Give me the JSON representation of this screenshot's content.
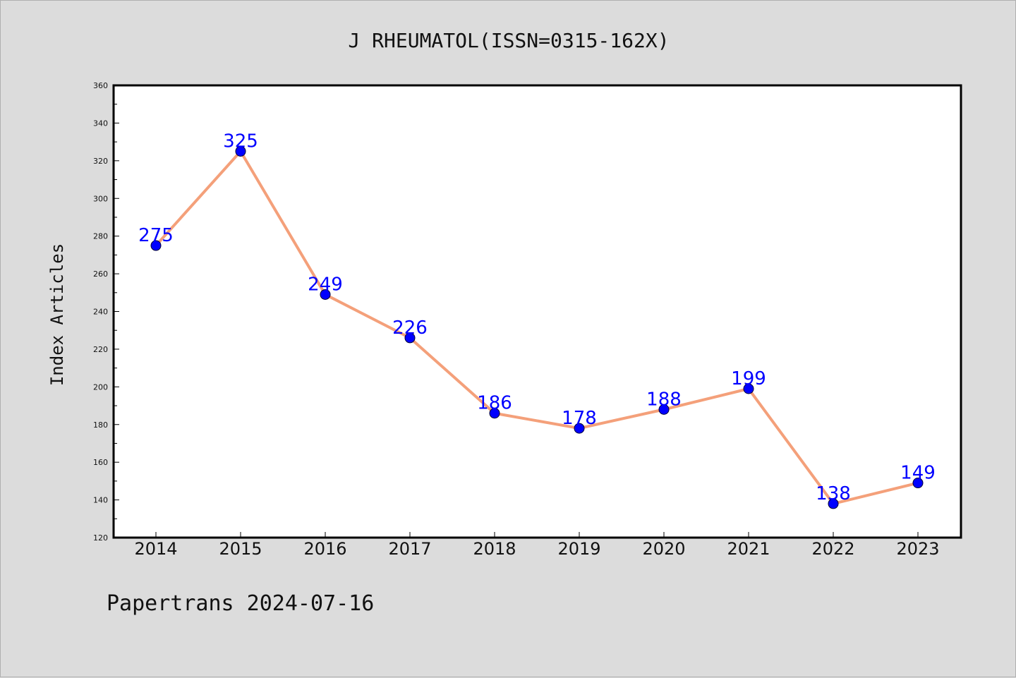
{
  "colors": {
    "background": "#dcdcdc",
    "plot_background": "#ffffff",
    "line": "#f4a07a",
    "marker": "#0000ff",
    "data_label": "#0000ff",
    "axis": "#000000"
  },
  "footer": "Papertrans 2024-07-16",
  "chart_data": {
    "type": "line",
    "title": "J RHEUMATOL(ISSN=0315-162X)",
    "xlabel": "",
    "ylabel": "Index Articles",
    "categories": [
      "2014",
      "2015",
      "2016",
      "2017",
      "2018",
      "2019",
      "2020",
      "2021",
      "2022",
      "2023"
    ],
    "series": [
      {
        "values": [
          275,
          325,
          249,
          226,
          186,
          178,
          188,
          199,
          138,
          149
        ]
      }
    ],
    "ylim": [
      120,
      360
    ],
    "yticks": [
      120,
      140,
      160,
      180,
      200,
      220,
      240,
      260,
      280,
      300,
      320,
      340,
      360
    ],
    "grid": false,
    "data_labels": true
  }
}
